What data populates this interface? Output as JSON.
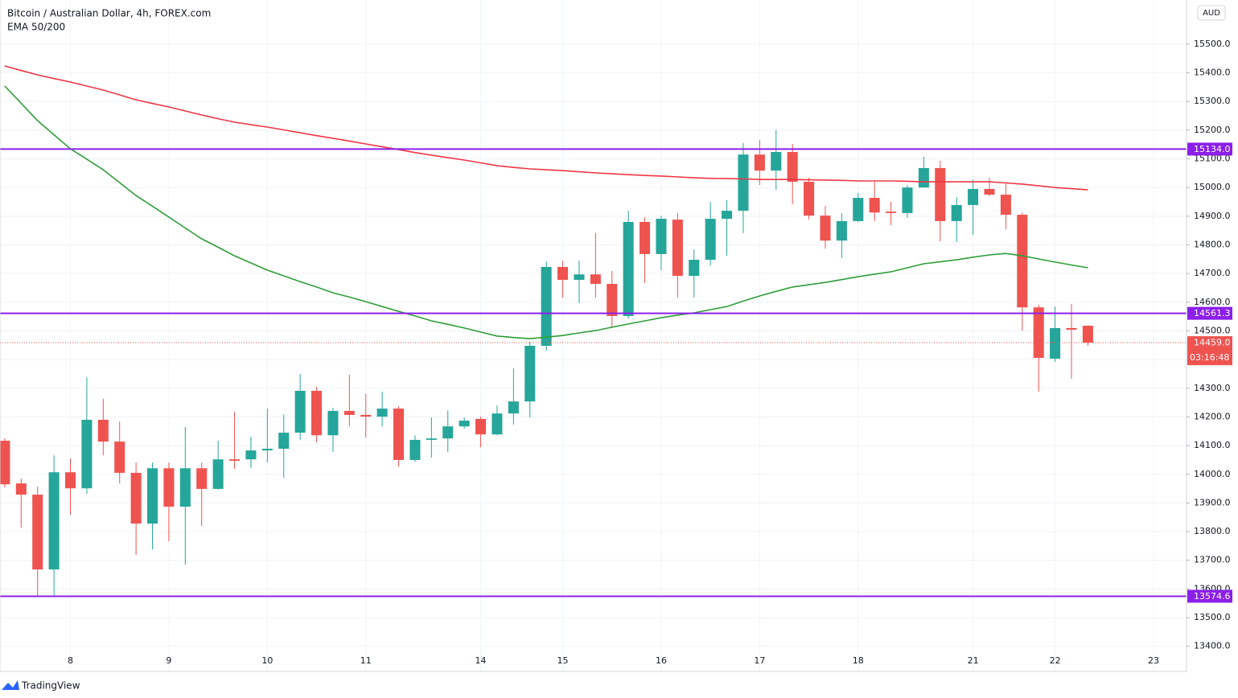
{
  "chart_data": {
    "type": "candlestick",
    "title": "Bitcoin / Australian Dollar, 4h, FOREX.com",
    "subtitle": "EMA 50/200",
    "currency": "AUD",
    "brand": "TradingView",
    "up_color": "#26a69a",
    "down_color": "#ef5350",
    "open": [
      14117,
      13968,
      13929,
      13668,
      14007,
      13951,
      14190,
      14114,
      14005,
      13828,
      14021,
      13887,
      14021,
      13949,
      14052,
      14052,
      14083,
      14089,
      14145,
      14291,
      14136,
      14221,
      14207,
      14201,
      14229,
      14050,
      14120,
      14125,
      14167,
      14193,
      14139,
      14212,
      14254,
      14448,
      14723,
      14678,
      14697,
      14664,
      14552,
      14880,
      14768,
      14888,
      14692,
      14748,
      14891,
      14919,
      15115,
      15059,
      15124,
      15020,
      14902,
      14815,
      14883,
      14964,
      14916,
      14911,
      15000,
      15068,
      14883,
      14939,
      14995,
      14975,
      14905,
      14582,
      14403,
      14510,
      14518
    ],
    "high": [
      14125,
      13985,
      13957,
      14066,
      14055,
      14338,
      14263,
      14184,
      14041,
      14041,
      14041,
      14165,
      14041,
      14117,
      14218,
      14131,
      14229,
      14209,
      14350,
      14305,
      14232,
      14347,
      14280,
      14288,
      14237,
      14136,
      14198,
      14223,
      14198,
      14201,
      14240,
      14369,
      14462,
      14742,
      14745,
      14745,
      14841,
      14709,
      14919,
      14897,
      14902,
      14911,
      14784,
      14950,
      14956,
      15155,
      15166,
      15200,
      15152,
      15034,
      14936,
      14911,
      14981,
      15020,
      14950,
      15009,
      15107,
      15093,
      14967,
      15028,
      15034,
      15014,
      14913,
      14591,
      14585,
      14594,
      14518
    ],
    "low": [
      13954,
      13814,
      13578,
      13578,
      13859,
      13932,
      14066,
      13968,
      13719,
      13738,
      13766,
      13685,
      13820,
      13946,
      14019,
      14021,
      14041,
      13988,
      14120,
      14111,
      14078,
      14167,
      14128,
      14167,
      14027,
      14044,
      14058,
      14078,
      14159,
      14094,
      14136,
      14173,
      14198,
      14431,
      14616,
      14597,
      14616,
      14510,
      14543,
      14667,
      14712,
      14616,
      14616,
      14728,
      14762,
      14841,
      15009,
      14992,
      14942,
      14888,
      14787,
      14754,
      14880,
      14883,
      14869,
      14894,
      15000,
      14812,
      14810,
      14835,
      14970,
      14855,
      14501,
      14288,
      14392,
      14333,
      14448
    ],
    "close": [
      13965,
      13929,
      13668,
      14007,
      13951,
      14190,
      14114,
      14005,
      13828,
      14021,
      13887,
      14021,
      13949,
      14052,
      14047,
      14083,
      14089,
      14145,
      14291,
      14136,
      14221,
      14207,
      14201,
      14229,
      14050,
      14120,
      14125,
      14167,
      14187,
      14139,
      14212,
      14254,
      14448,
      14723,
      14678,
      14697,
      14664,
      14552,
      14880,
      14768,
      14891,
      14692,
      14748,
      14891,
      14919,
      15115,
      15059,
      15124,
      15020,
      14902,
      14815,
      14883,
      14964,
      14913,
      14911,
      15000,
      15068,
      14883,
      14939,
      14995,
      14975,
      14905,
      14582,
      14406,
      14510,
      14504,
      14459
    ],
    "series": [
      {
        "color": "#f23645",
        "values": [
          15424,
          15408,
          15393,
          15380,
          15368,
          15354,
          15340,
          15323,
          15306,
          15293,
          15281,
          15267,
          15253,
          15240,
          15228,
          15219,
          15211,
          15201,
          15191,
          15181,
          15172,
          15162,
          15152,
          15142,
          15132,
          15122,
          15113,
          15104,
          15096,
          15086,
          15076,
          15070,
          15065,
          15062,
          15059,
          15055,
          15051,
          15048,
          15045,
          15042,
          15040,
          15037,
          15034,
          15032,
          15031,
          15030,
          15028,
          15028,
          15028,
          15027,
          15026,
          15025,
          15023,
          15023,
          15023,
          15022,
          15020,
          15020,
          15020,
          15020,
          15020,
          15016,
          15012,
          15006,
          15000,
          14996,
          14992
        ]
      },
      {
        "color": "#2e9e38",
        "values": [
          15354,
          15294,
          15233,
          15184,
          15135,
          15099,
          15062,
          15017,
          14972,
          14935,
          14897,
          14859,
          14821,
          14792,
          14762,
          14737,
          14712,
          14692,
          14672,
          14653,
          14633,
          14618,
          14602,
          14585,
          14568,
          14552,
          14535,
          14523,
          14510,
          14496,
          14482,
          14477,
          14473,
          14478,
          14484,
          14493,
          14501,
          14513,
          14524,
          14535,
          14546,
          14555,
          14563,
          14574,
          14585,
          14604,
          14622,
          14638,
          14653,
          14661,
          14669,
          14679,
          14689,
          14698,
          14706,
          14720,
          14734,
          14741,
          14748,
          14757,
          14765,
          14770,
          14762,
          14751,
          14740,
          14730,
          14720
        ]
      }
    ],
    "hlines_color": "#8b1fe8",
    "hlines": [
      {
        "value": 15134,
        "label": "15134.0"
      },
      {
        "value": 14561.3,
        "label": "14561.3"
      },
      {
        "value": 13574.6,
        "label": "13574.6"
      }
    ],
    "last_price": {
      "value": 14459,
      "label": "14459.0"
    },
    "countdown": "03:16:48",
    "xlim": [
      -0.29,
      72.01
    ],
    "xticks": [
      {
        "value": 4,
        "label": "8"
      },
      {
        "value": 10,
        "label": "9"
      },
      {
        "value": 16,
        "label": "10"
      },
      {
        "value": 22,
        "label": "11"
      },
      {
        "value": 29,
        "label": "14"
      },
      {
        "value": 34,
        "label": "15"
      },
      {
        "value": 40,
        "label": "16"
      },
      {
        "value": 46,
        "label": "17"
      },
      {
        "value": 52,
        "label": "18"
      },
      {
        "value": 59,
        "label": "21"
      },
      {
        "value": 64,
        "label": "22"
      },
      {
        "value": 70,
        "label": "23"
      }
    ],
    "ylim": [
      13388,
      15654
    ],
    "yticks": [
      {
        "value": 13400,
        "label": "13400.0"
      },
      {
        "value": 13500,
        "label": "13500.0"
      },
      {
        "value": 13600,
        "label": "13600.0"
      },
      {
        "value": 13700,
        "label": "13700.0"
      },
      {
        "value": 13800,
        "label": "13800.0"
      },
      {
        "value": 13900,
        "label": "13900.0"
      },
      {
        "value": 14000,
        "label": "14000.0"
      },
      {
        "value": 14100,
        "label": "14100.0"
      },
      {
        "value": 14200,
        "label": "14200.0"
      },
      {
        "value": 14300,
        "label": "14300.0"
      },
      {
        "value": 14400,
        "label": "14400.0"
      },
      {
        "value": 14500,
        "label": "14500.0"
      },
      {
        "value": 14600,
        "label": "14600.0"
      },
      {
        "value": 14700,
        "label": "14700.0"
      },
      {
        "value": 14800,
        "label": "14800.0"
      },
      {
        "value": 14900,
        "label": "14900.0"
      },
      {
        "value": 15000,
        "label": "15000.0"
      },
      {
        "value": 15100,
        "label": "15100.0"
      },
      {
        "value": 15200,
        "label": "15200.0"
      },
      {
        "value": 15300,
        "label": "15300.0"
      },
      {
        "value": 15400,
        "label": "15400.0"
      },
      {
        "value": 15500,
        "label": "15500.0"
      }
    ],
    "grid": true
  }
}
